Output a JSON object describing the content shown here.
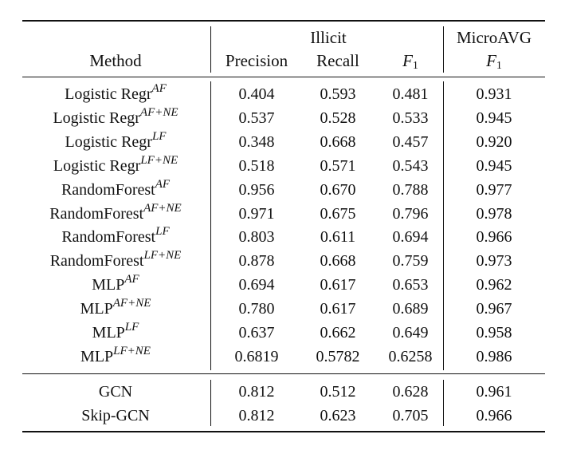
{
  "header": {
    "method": "Method",
    "illicit": "Illicit",
    "precision": "Precision",
    "recall": "Recall",
    "f1_letter": "F",
    "f1_sub": "1",
    "microavg": "MicroAVG",
    "micro_f1_letter": "F",
    "micro_f1_sub": "1"
  },
  "rows": [
    {
      "method": "Logistic Regr",
      "sup": "AF",
      "precision": "0.404",
      "recall": "0.593",
      "f1": "0.481",
      "micro_f1": "0.931"
    },
    {
      "method": "Logistic Regr",
      "sup": "AF+NE",
      "precision": "0.537",
      "recall": "0.528",
      "f1": "0.533",
      "micro_f1": "0.945"
    },
    {
      "method": "Logistic Regr",
      "sup": "LF",
      "precision": "0.348",
      "recall": "0.668",
      "f1": "0.457",
      "micro_f1": "0.920"
    },
    {
      "method": "Logistic Regr",
      "sup": "LF+NE",
      "precision": "0.518",
      "recall": "0.571",
      "f1": "0.543",
      "micro_f1": "0.945"
    },
    {
      "method": "RandomForest",
      "sup": "AF",
      "precision": "0.956",
      "recall": "0.670",
      "f1": "0.788",
      "micro_f1": "0.977"
    },
    {
      "method": "RandomForest",
      "sup": "AF+NE",
      "precision": "0.971",
      "recall": "0.675",
      "f1": "0.796",
      "micro_f1": "0.978"
    },
    {
      "method": "RandomForest",
      "sup": "LF",
      "precision": "0.803",
      "recall": "0.611",
      "f1": "0.694",
      "micro_f1": "0.966"
    },
    {
      "method": "RandomForest",
      "sup": "LF+NE",
      "precision": "0.878",
      "recall": "0.668",
      "f1": "0.759",
      "micro_f1": "0.973"
    },
    {
      "method": "MLP",
      "sup": "AF",
      "precision": "0.694",
      "recall": "0.617",
      "f1": "0.653",
      "micro_f1": "0.962"
    },
    {
      "method": "MLP",
      "sup": "AF+NE",
      "precision": "0.780",
      "recall": "0.617",
      "f1": "0.689",
      "micro_f1": "0.967"
    },
    {
      "method": "MLP",
      "sup": "LF",
      "precision": "0.637",
      "recall": "0.662",
      "f1": "0.649",
      "micro_f1": "0.958"
    },
    {
      "method": "MLP",
      "sup": "LF+NE",
      "precision": "0.6819",
      "recall": "0.5782",
      "f1": "0.6258",
      "micro_f1": "0.986"
    }
  ],
  "gcn_rows": [
    {
      "method": "GCN",
      "precision": "0.812",
      "recall": "0.512",
      "f1": "0.628",
      "micro_f1": "0.961"
    },
    {
      "method": "Skip-GCN",
      "precision": "0.812",
      "recall": "0.623",
      "f1": "0.705",
      "micro_f1": "0.966"
    }
  ]
}
